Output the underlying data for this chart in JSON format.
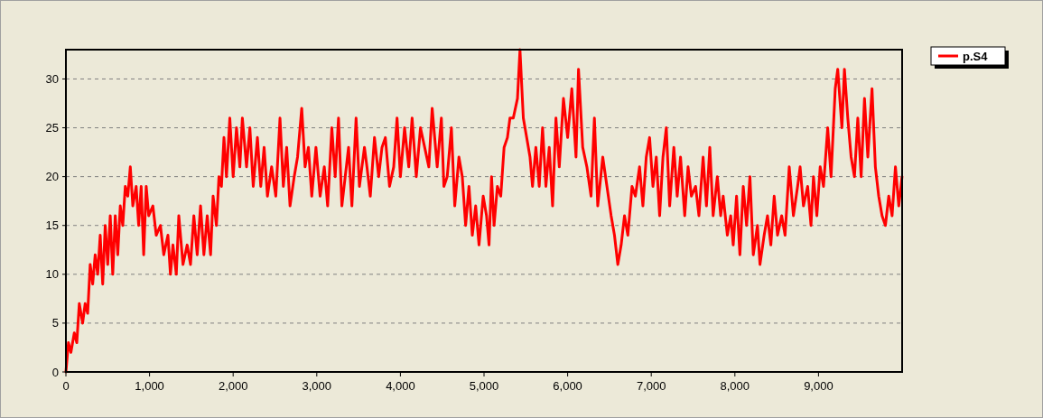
{
  "chart_data": {
    "type": "line",
    "xlim": [
      0,
      10000
    ],
    "ylim": [
      0,
      33
    ],
    "xticks": [
      0,
      {
        "value": 1000,
        "label": "1,000"
      },
      {
        "value": 2000,
        "label": "2,000"
      },
      {
        "value": 3000,
        "label": "3,000"
      },
      {
        "value": 4000,
        "label": "4,000"
      },
      {
        "value": 5000,
        "label": "5,000"
      },
      {
        "value": 6000,
        "label": "6,000"
      },
      {
        "value": 7000,
        "label": "7,000"
      },
      {
        "value": 8000,
        "label": "8,000"
      },
      {
        "value": 9000,
        "label": "9,000"
      }
    ],
    "yticks": [
      0,
      5,
      10,
      15,
      20,
      25,
      30
    ],
    "grid": "y",
    "legend": "top right",
    "line_style": "solid",
    "series": [
      {
        "name": "p.S4",
        "color": "#ff0000",
        "x": [
          0,
          30,
          60,
          100,
          130,
          160,
          200,
          230,
          260,
          290,
          320,
          350,
          380,
          410,
          440,
          470,
          500,
          530,
          560,
          590,
          620,
          650,
          680,
          710,
          740,
          770,
          800,
          840,
          870,
          900,
          930,
          960,
          990,
          1040,
          1080,
          1130,
          1170,
          1220,
          1250,
          1280,
          1320,
          1350,
          1400,
          1450,
          1490,
          1530,
          1570,
          1610,
          1650,
          1690,
          1730,
          1760,
          1800,
          1830,
          1860,
          1890,
          1920,
          1960,
          2000,
          2040,
          2080,
          2110,
          2160,
          2200,
          2240,
          2290,
          2330,
          2370,
          2410,
          2460,
          2510,
          2560,
          2600,
          2640,
          2680,
          2730,
          2770,
          2820,
          2860,
          2900,
          2940,
          2990,
          3040,
          3090,
          3130,
          3180,
          3220,
          3260,
          3300,
          3340,
          3380,
          3420,
          3470,
          3510,
          3570,
          3600,
          3640,
          3690,
          3740,
          3780,
          3820,
          3870,
          3920,
          3960,
          4000,
          4050,
          4100,
          4140,
          4190,
          4240,
          4290,
          4340,
          4380,
          4440,
          4490,
          4520,
          4560,
          4610,
          4650,
          4700,
          4740,
          4780,
          4820,
          4860,
          4900,
          4940,
          4990,
          5030,
          5060,
          5090,
          5120,
          5160,
          5200,
          5240,
          5280,
          5310,
          5350,
          5400,
          5430,
          5470,
          5510,
          5550,
          5580,
          5620,
          5660,
          5700,
          5740,
          5780,
          5820,
          5860,
          5900,
          5950,
          6000,
          6050,
          6100,
          6130,
          6180,
          6230,
          6280,
          6320,
          6360,
          6420,
          6470,
          6520,
          6560,
          6600,
          6640,
          6680,
          6720,
          6770,
          6810,
          6860,
          6900,
          6940,
          6980,
          7020,
          7060,
          7100,
          7140,
          7180,
          7220,
          7270,
          7310,
          7350,
          7400,
          7440,
          7480,
          7530,
          7570,
          7620,
          7660,
          7700,
          7740,
          7790,
          7830,
          7860,
          7910,
          7950,
          7980,
          8020,
          8060,
          8100,
          8140,
          8180,
          8220,
          8270,
          8300,
          8350,
          8390,
          8430,
          8470,
          8510,
          8560,
          8600,
          8650,
          8700,
          8750,
          8780,
          8820,
          8870,
          8910,
          8940,
          8980,
          9020,
          9060,
          9110,
          9150,
          9200,
          9230,
          9280,
          9310,
          9350,
          9390,
          9430,
          9470,
          9510,
          9550,
          9590,
          9640,
          9680,
          9720,
          9760,
          9800,
          9840,
          9880,
          9920,
          9960,
          9999
        ],
        "values": [
          0,
          3,
          2,
          4,
          3,
          7,
          5,
          7,
          6,
          11,
          9,
          12,
          10,
          14,
          9,
          15,
          11,
          16,
          10,
          16,
          12,
          17,
          15,
          19,
          18,
          21,
          17,
          19,
          15,
          19,
          12,
          19,
          16,
          17,
          14,
          15,
          12,
          14,
          10,
          13,
          10,
          16,
          11,
          13,
          11,
          16,
          12,
          17,
          12,
          16,
          12,
          18,
          15,
          20,
          19,
          24,
          20,
          26,
          20,
          25,
          21,
          26,
          21,
          25,
          19,
          24,
          19,
          23,
          18,
          21,
          18,
          26,
          19,
          23,
          17,
          20,
          22,
          27,
          21,
          23,
          18,
          23,
          18,
          21,
          17,
          25,
          20,
          26,
          17,
          20,
          23,
          17,
          26,
          19,
          23,
          21,
          18,
          24,
          20,
          23,
          24,
          19,
          21,
          26,
          20,
          25,
          21,
          26,
          20,
          25,
          23,
          21,
          27,
          21,
          26,
          19,
          20,
          25,
          17,
          22,
          20,
          15,
          19,
          14,
          17,
          13,
          18,
          16,
          13,
          20,
          15,
          19,
          18,
          23,
          24,
          26,
          26,
          28,
          33,
          26,
          24,
          22,
          19,
          23,
          19,
          25,
          19,
          23,
          17,
          26,
          21,
          28,
          24,
          29,
          22,
          31,
          23,
          21,
          18,
          26,
          17,
          22,
          19,
          16,
          14,
          11,
          13,
          16,
          14,
          19,
          18,
          21,
          17,
          22,
          24,
          19,
          22,
          16,
          22,
          25,
          17,
          23,
          18,
          22,
          16,
          21,
          18,
          19,
          16,
          22,
          17,
          23,
          16,
          20,
          16,
          18,
          14,
          16,
          13,
          18,
          12,
          19,
          15,
          20,
          12,
          15,
          11,
          14,
          16,
          13,
          18,
          14,
          16,
          14,
          21,
          16,
          19,
          21,
          17,
          19,
          15,
          20,
          16,
          21,
          19,
          25,
          20,
          29,
          31,
          25,
          31,
          26,
          22,
          20,
          26,
          20,
          28,
          22,
          29,
          21,
          18,
          16,
          15,
          18,
          16,
          21,
          17,
          20
        ]
      }
    ]
  }
}
